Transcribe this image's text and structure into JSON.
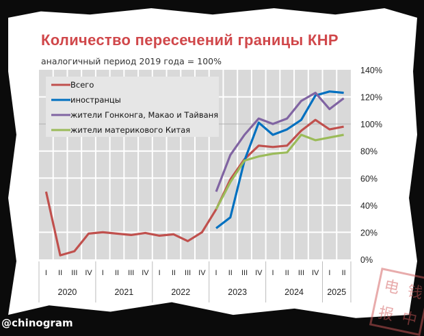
{
  "title": "Количество пересечений границы КНР",
  "subtitle": "аналогичный период 2019 года = 100%",
  "handle": "@chinogram",
  "stamp_text": "电钱报中",
  "chart_data": {
    "type": "line",
    "title": "Количество пересечений границы КНР",
    "subtitle": "аналогичный период 2019 года = 100%",
    "ylim": [
      0,
      140
    ],
    "yticks": [
      0,
      20,
      40,
      60,
      80,
      100,
      120,
      140
    ],
    "ytick_labels": [
      "0%",
      "20%",
      "40%",
      "60%",
      "80%",
      "100%",
      "120%",
      "140%"
    ],
    "y_axis_position": "right",
    "grid": true,
    "legend_position": "top-left",
    "quarters": [
      "I",
      "II",
      "III",
      "IV",
      "I",
      "II",
      "III",
      "IV",
      "I",
      "II",
      "III",
      "IV",
      "I",
      "II",
      "III",
      "IV",
      "I",
      "II",
      "III",
      "IV",
      "I",
      "II"
    ],
    "years": [
      {
        "label": "2020",
        "count": 4
      },
      {
        "label": "2021",
        "count": 4
      },
      {
        "label": "2022",
        "count": 4
      },
      {
        "label": "2023",
        "count": 4
      },
      {
        "label": "2024",
        "count": 4
      },
      {
        "label": "2025",
        "count": 2
      }
    ],
    "series": [
      {
        "name": "Всего",
        "color": "#c0504d",
        "values": [
          50,
          3,
          6,
          19,
          20,
          19,
          18,
          19.5,
          17.5,
          18.5,
          13.5,
          20,
          37,
          59,
          74,
          84,
          83,
          84,
          95,
          103,
          96,
          98
        ]
      },
      {
        "name": "иностранцы",
        "color": "#0070c0",
        "values": [
          null,
          null,
          null,
          null,
          null,
          null,
          null,
          null,
          null,
          null,
          null,
          null,
          23,
          31,
          73,
          101,
          92,
          96,
          103,
          121,
          124,
          123
        ]
      },
      {
        "name": "жители Гонконга, Макао и Тайваня",
        "color": "#8064a2",
        "values": [
          null,
          null,
          null,
          null,
          null,
          null,
          null,
          null,
          null,
          null,
          null,
          null,
          50,
          77,
          92,
          104,
          100,
          104,
          117,
          123,
          111,
          119
        ]
      },
      {
        "name": "жители материкового Китая",
        "color": "#9bbb59",
        "values": [
          null,
          null,
          null,
          null,
          null,
          null,
          null,
          null,
          null,
          null,
          null,
          null,
          37,
          57,
          73,
          76,
          78,
          79,
          92,
          88,
          90,
          92
        ]
      }
    ]
  }
}
